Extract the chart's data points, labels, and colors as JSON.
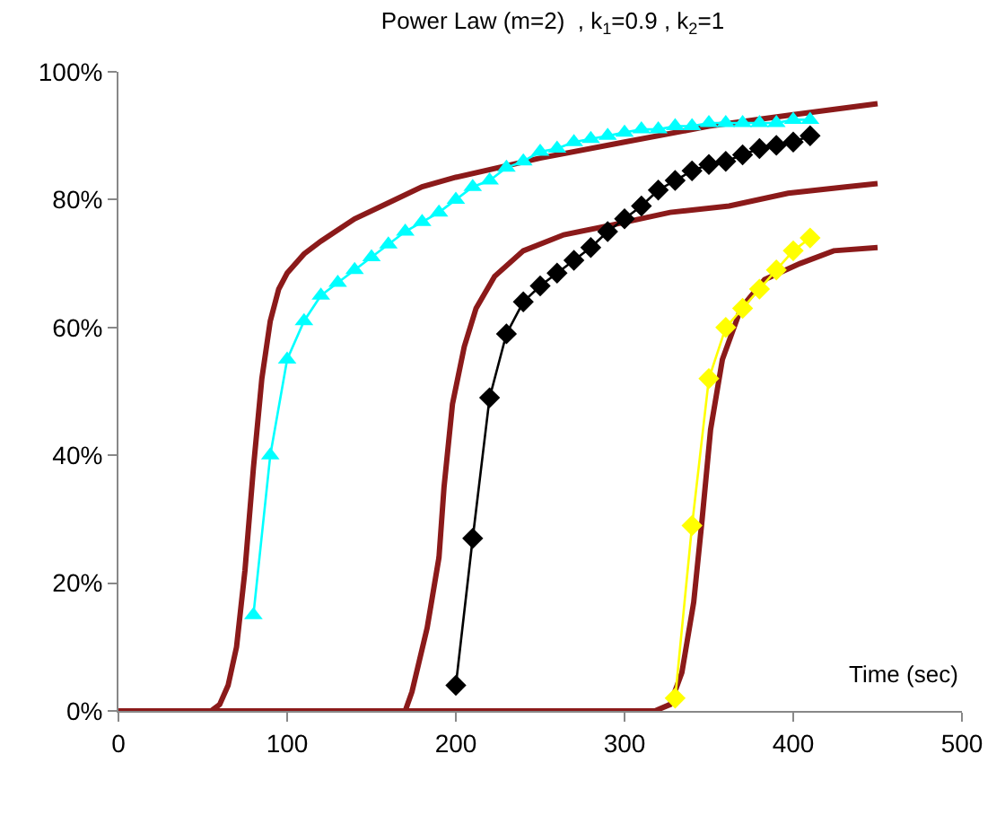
{
  "chart_data": {
    "type": "line",
    "title": "Power Law (m=2)  , k$_{1}$=0.9 , k$_{2}$=1",
    "xlabel": "Time (sec)",
    "xlim": [
      0,
      500
    ],
    "xticks": [
      0,
      100,
      200,
      300,
      400,
      500
    ],
    "ylim": [
      0,
      100
    ],
    "yticks": [
      {
        "value": 0,
        "label": "0%"
      },
      {
        "value": 20,
        "label": "20%"
      },
      {
        "value": 40,
        "label": "40%"
      },
      {
        "value": 60,
        "label": "60%"
      },
      {
        "value": 80,
        "label": "80%"
      },
      {
        "value": 100,
        "label": "100%"
      }
    ],
    "grid": false,
    "line_style": "solid",
    "series": [
      {
        "color": "#00ffff",
        "marker": "triangle",
        "x": [
          80,
          90,
          100,
          110,
          120,
          130,
          140,
          150,
          160,
          170,
          180,
          190,
          200,
          210,
          220,
          230,
          240,
          250,
          260,
          270,
          280,
          290,
          300,
          310,
          320,
          330,
          340,
          350,
          360,
          370,
          380,
          390,
          400,
          410
        ],
        "values": [
          15,
          40,
          55,
          61,
          65,
          67,
          69,
          71,
          73,
          75,
          76.5,
          78,
          80,
          82,
          83,
          85,
          86,
          87.5,
          88,
          89,
          89.5,
          90,
          90.5,
          91,
          91,
          91.5,
          91.5,
          92,
          92,
          92,
          92,
          92,
          92.5,
          92.5
        ]
      },
      {
        "color": "#000000",
        "marker": "diamond",
        "x": [
          200,
          210,
          220,
          230,
          240,
          250,
          260,
          270,
          280,
          290,
          300,
          310,
          320,
          330,
          340,
          350,
          360,
          370,
          380,
          390,
          400,
          410
        ],
        "values": [
          4,
          27,
          49,
          59,
          64,
          66.5,
          68.5,
          70.5,
          72.5,
          75,
          77,
          79,
          81.5,
          83,
          84.5,
          85.5,
          86,
          87,
          88,
          88.5,
          89,
          90
        ]
      },
      {
        "color": "#ffff00",
        "marker": "diamond",
        "x": [
          330,
          340,
          350,
          360,
          370,
          380,
          390,
          400,
          410
        ],
        "values": [
          2,
          29,
          52,
          60,
          63,
          66,
          69,
          72,
          74
        ]
      },
      {
        "color": "#8b1a1a",
        "marker": "none",
        "x": [
          0,
          55,
          60,
          65,
          70,
          75,
          80,
          85,
          90,
          95,
          100,
          110,
          120,
          140,
          160,
          180,
          200,
          250,
          300,
          350,
          400,
          450
        ],
        "values": [
          0,
          0,
          1,
          4,
          10,
          22,
          38,
          52,
          61,
          66,
          68.5,
          71.5,
          73.5,
          77,
          79.5,
          82,
          83.5,
          86.5,
          89,
          91.5,
          93.3,
          95
        ]
      },
      {
        "color": "#8b1a1a",
        "marker": "none",
        "x": [
          0,
          170,
          174,
          183,
          190,
          193,
          198,
          205,
          212,
          223,
          240,
          264,
          292,
          327,
          362,
          397,
          431,
          450
        ],
        "values": [
          0,
          0,
          3,
          13,
          24,
          35,
          48,
          57,
          63,
          68,
          72,
          74.5,
          76,
          78,
          79,
          81,
          82,
          82.5
        ]
      },
      {
        "color": "#8b1a1a",
        "marker": "none",
        "x": [
          0,
          318,
          327,
          334,
          341,
          346,
          351,
          358,
          369,
          383,
          404,
          424,
          450
        ],
        "values": [
          0,
          0,
          1,
          6,
          17,
          30,
          44,
          55,
          63,
          67.5,
          70,
          72,
          72.5
        ]
      }
    ]
  }
}
